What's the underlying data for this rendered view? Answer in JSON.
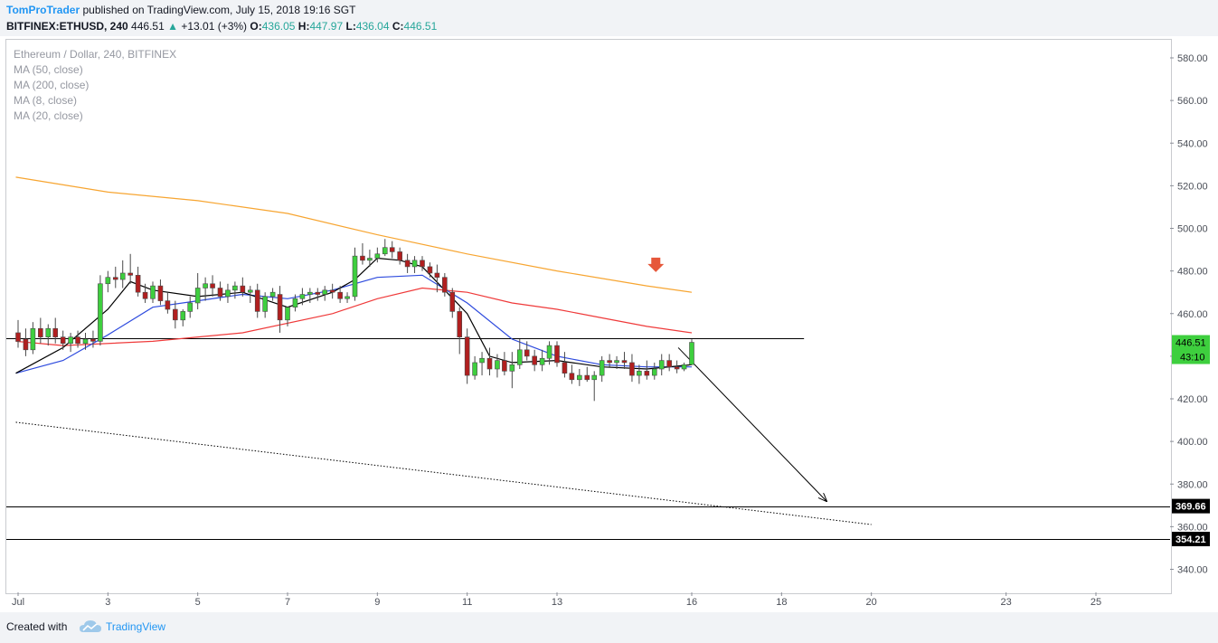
{
  "header": {
    "author": "TomProTrader",
    "published": "published on TradingView.com, July 15, 2018 19:16 SGT",
    "symbol": "BITFINEX:ETHUSD, 240",
    "last": "446.51",
    "arrow": "▲",
    "change": "+13.01 (+3%)",
    "o_label": "O:",
    "o_value": "436.05",
    "h_label": "H:",
    "h_value": "447.97",
    "l_label": "L:",
    "l_value": "436.04",
    "c_label": "C:",
    "c_value": "446.51"
  },
  "legend": {
    "title": "Ethereum / Dollar, 240, BITFINEX",
    "ma50": "MA (50, close)",
    "ma200": "MA (200, close)",
    "ma8": "MA (8, close)",
    "ma20": "MA (20, close)"
  },
  "footer": {
    "created": "Created with",
    "brand": "TradingView"
  },
  "colors": {
    "bull": "#3ecf3e",
    "bear": "#b11f1f",
    "ma200": "#f7a531",
    "ma50": "#ef3a3a",
    "ma20": "#2e4bde",
    "ma8": "#000000",
    "last_label": "#3ecf3e",
    "marker": "#e6573a"
  },
  "chart_data": {
    "type": "candlestick",
    "symbol": "BITFINEX:ETHUSD",
    "interval": "240",
    "ylim": [
      330,
      590
    ],
    "y_ticks": [
      "580.00",
      "560.00",
      "540.00",
      "520.00",
      "500.00",
      "480.00",
      "460.00",
      "440.00",
      "420.00",
      "400.00",
      "380.00",
      "360.00",
      "340.00"
    ],
    "x_ticks": [
      "Jul",
      "3",
      "5",
      "7",
      "9",
      "11",
      "13",
      "16",
      "18",
      "20",
      "23",
      "25"
    ],
    "x_tick_days": [
      1,
      3,
      5,
      7,
      9,
      11,
      13,
      16,
      18,
      20,
      23,
      25
    ],
    "x_range_days": [
      0.95,
      26.4
    ],
    "candles": [
      {
        "d": 1.0,
        "o": 451,
        "h": 457,
        "l": 444,
        "c": 447
      },
      {
        "d": 1.17,
        "o": 448,
        "h": 453,
        "l": 440,
        "c": 443
      },
      {
        "d": 1.33,
        "o": 443,
        "h": 456,
        "l": 441,
        "c": 453
      },
      {
        "d": 1.5,
        "o": 453,
        "h": 458,
        "l": 446,
        "c": 449
      },
      {
        "d": 1.67,
        "o": 449,
        "h": 455,
        "l": 445,
        "c": 453
      },
      {
        "d": 1.83,
        "o": 453,
        "h": 458,
        "l": 446,
        "c": 449
      },
      {
        "d": 2.0,
        "o": 449,
        "h": 452,
        "l": 443,
        "c": 446
      },
      {
        "d": 2.17,
        "o": 446,
        "h": 451,
        "l": 442,
        "c": 449
      },
      {
        "d": 2.33,
        "o": 449,
        "h": 452,
        "l": 444,
        "c": 446
      },
      {
        "d": 2.5,
        "o": 446,
        "h": 451,
        "l": 443,
        "c": 448
      },
      {
        "d": 2.67,
        "o": 448,
        "h": 452,
        "l": 444,
        "c": 447
      },
      {
        "d": 2.83,
        "o": 447,
        "h": 478,
        "l": 445,
        "c": 474
      },
      {
        "d": 3.0,
        "o": 474,
        "h": 480,
        "l": 470,
        "c": 477
      },
      {
        "d": 3.17,
        "o": 477,
        "h": 482,
        "l": 472,
        "c": 476
      },
      {
        "d": 3.33,
        "o": 476,
        "h": 485,
        "l": 472,
        "c": 479
      },
      {
        "d": 3.5,
        "o": 479,
        "h": 488,
        "l": 474,
        "c": 478
      },
      {
        "d": 3.67,
        "o": 478,
        "h": 482,
        "l": 468,
        "c": 470
      },
      {
        "d": 3.83,
        "o": 470,
        "h": 474,
        "l": 465,
        "c": 467
      },
      {
        "d": 4.0,
        "o": 467,
        "h": 475,
        "l": 465,
        "c": 473
      },
      {
        "d": 4.17,
        "o": 473,
        "h": 476,
        "l": 464,
        "c": 466
      },
      {
        "d": 4.33,
        "o": 466,
        "h": 470,
        "l": 460,
        "c": 462
      },
      {
        "d": 4.5,
        "o": 462,
        "h": 466,
        "l": 453,
        "c": 457
      },
      {
        "d": 4.67,
        "o": 457,
        "h": 462,
        "l": 454,
        "c": 461
      },
      {
        "d": 4.83,
        "o": 461,
        "h": 468,
        "l": 458,
        "c": 465
      },
      {
        "d": 5.0,
        "o": 465,
        "h": 479,
        "l": 462,
        "c": 472
      },
      {
        "d": 5.17,
        "o": 472,
        "h": 477,
        "l": 466,
        "c": 474
      },
      {
        "d": 5.33,
        "o": 474,
        "h": 478,
        "l": 468,
        "c": 472
      },
      {
        "d": 5.5,
        "o": 472,
        "h": 475,
        "l": 466,
        "c": 468
      },
      {
        "d": 5.67,
        "o": 468,
        "h": 474,
        "l": 465,
        "c": 471
      },
      {
        "d": 5.83,
        "o": 471,
        "h": 475,
        "l": 467,
        "c": 473
      },
      {
        "d": 6.0,
        "o": 473,
        "h": 477,
        "l": 468,
        "c": 470
      },
      {
        "d": 6.17,
        "o": 470,
        "h": 473,
        "l": 465,
        "c": 471
      },
      {
        "d": 6.33,
        "o": 471,
        "h": 474,
        "l": 458,
        "c": 461
      },
      {
        "d": 6.5,
        "o": 461,
        "h": 470,
        "l": 458,
        "c": 468
      },
      {
        "d": 6.67,
        "o": 468,
        "h": 472,
        "l": 466,
        "c": 470
      },
      {
        "d": 6.83,
        "o": 469,
        "h": 473,
        "l": 451,
        "c": 457
      },
      {
        "d": 7.0,
        "o": 457,
        "h": 463,
        "l": 454,
        "c": 463
      },
      {
        "d": 7.17,
        "o": 463,
        "h": 469,
        "l": 461,
        "c": 467
      },
      {
        "d": 7.33,
        "o": 467,
        "h": 472,
        "l": 464,
        "c": 469
      },
      {
        "d": 7.5,
        "o": 469,
        "h": 472,
        "l": 465,
        "c": 470
      },
      {
        "d": 7.67,
        "o": 470,
        "h": 472,
        "l": 466,
        "c": 469
      },
      {
        "d": 7.83,
        "o": 469,
        "h": 473,
        "l": 466,
        "c": 471
      },
      {
        "d": 8.0,
        "o": 471,
        "h": 474,
        "l": 467,
        "c": 470
      },
      {
        "d": 8.17,
        "o": 470,
        "h": 473,
        "l": 465,
        "c": 467
      },
      {
        "d": 8.33,
        "o": 467,
        "h": 470,
        "l": 465,
        "c": 468
      },
      {
        "d": 8.5,
        "o": 468,
        "h": 491,
        "l": 466,
        "c": 487
      },
      {
        "d": 8.67,
        "o": 487,
        "h": 493,
        "l": 483,
        "c": 485
      },
      {
        "d": 8.83,
        "o": 485,
        "h": 490,
        "l": 482,
        "c": 486
      },
      {
        "d": 9.0,
        "o": 486,
        "h": 491,
        "l": 484,
        "c": 488
      },
      {
        "d": 9.17,
        "o": 488,
        "h": 495,
        "l": 487,
        "c": 491
      },
      {
        "d": 9.33,
        "o": 491,
        "h": 494,
        "l": 486,
        "c": 489
      },
      {
        "d": 9.5,
        "o": 489,
        "h": 491,
        "l": 483,
        "c": 485
      },
      {
        "d": 9.67,
        "o": 485,
        "h": 488,
        "l": 479,
        "c": 482
      },
      {
        "d": 9.83,
        "o": 482,
        "h": 487,
        "l": 479,
        "c": 485
      },
      {
        "d": 10.0,
        "o": 485,
        "h": 487,
        "l": 480,
        "c": 482
      },
      {
        "d": 10.17,
        "o": 482,
        "h": 484,
        "l": 477,
        "c": 479
      },
      {
        "d": 10.33,
        "o": 479,
        "h": 483,
        "l": 470,
        "c": 477
      },
      {
        "d": 10.5,
        "o": 477,
        "h": 479,
        "l": 468,
        "c": 470
      },
      {
        "d": 10.67,
        "o": 470,
        "h": 472,
        "l": 458,
        "c": 461
      },
      {
        "d": 10.83,
        "o": 461,
        "h": 463,
        "l": 441,
        "c": 449
      },
      {
        "d": 11.0,
        "o": 449,
        "h": 453,
        "l": 427,
        "c": 431
      },
      {
        "d": 11.17,
        "o": 431,
        "h": 440,
        "l": 429,
        "c": 437
      },
      {
        "d": 11.33,
        "o": 437,
        "h": 442,
        "l": 431,
        "c": 439
      },
      {
        "d": 11.5,
        "o": 439,
        "h": 444,
        "l": 431,
        "c": 434
      },
      {
        "d": 11.67,
        "o": 434,
        "h": 441,
        "l": 430,
        "c": 438
      },
      {
        "d": 11.83,
        "o": 438,
        "h": 442,
        "l": 431,
        "c": 433
      },
      {
        "d": 12.0,
        "o": 433,
        "h": 442,
        "l": 425,
        "c": 436
      },
      {
        "d": 12.17,
        "o": 436,
        "h": 448,
        "l": 434,
        "c": 443
      },
      {
        "d": 12.33,
        "o": 443,
        "h": 447,
        "l": 438,
        "c": 440
      },
      {
        "d": 12.5,
        "o": 440,
        "h": 443,
        "l": 433,
        "c": 436
      },
      {
        "d": 12.67,
        "o": 436,
        "h": 443,
        "l": 433,
        "c": 439
      },
      {
        "d": 12.83,
        "o": 439,
        "h": 447,
        "l": 436,
        "c": 445
      },
      {
        "d": 13.0,
        "o": 445,
        "h": 447,
        "l": 435,
        "c": 437
      },
      {
        "d": 13.17,
        "o": 437,
        "h": 442,
        "l": 430,
        "c": 432
      },
      {
        "d": 13.33,
        "o": 432,
        "h": 436,
        "l": 427,
        "c": 429
      },
      {
        "d": 13.5,
        "o": 429,
        "h": 434,
        "l": 426,
        "c": 431
      },
      {
        "d": 13.67,
        "o": 431,
        "h": 435,
        "l": 428,
        "c": 429
      },
      {
        "d": 13.83,
        "o": 429,
        "h": 433,
        "l": 419,
        "c": 431
      },
      {
        "d": 14.0,
        "o": 431,
        "h": 440,
        "l": 428,
        "c": 438
      },
      {
        "d": 14.17,
        "o": 438,
        "h": 441,
        "l": 435,
        "c": 437
      },
      {
        "d": 14.33,
        "o": 437,
        "h": 440,
        "l": 434,
        "c": 438
      },
      {
        "d": 14.5,
        "o": 438,
        "h": 442,
        "l": 434,
        "c": 437
      },
      {
        "d": 14.67,
        "o": 437,
        "h": 441,
        "l": 428,
        "c": 431
      },
      {
        "d": 14.83,
        "o": 431,
        "h": 436,
        "l": 427,
        "c": 433
      },
      {
        "d": 15.0,
        "o": 433,
        "h": 438,
        "l": 429,
        "c": 431
      },
      {
        "d": 15.17,
        "o": 431,
        "h": 437,
        "l": 429,
        "c": 434
      },
      {
        "d": 15.33,
        "o": 434,
        "h": 441,
        "l": 431,
        "c": 438
      },
      {
        "d": 15.5,
        "o": 438,
        "h": 441,
        "l": 433,
        "c": 435
      },
      {
        "d": 15.67,
        "o": 435,
        "h": 438,
        "l": 432,
        "c": 434
      },
      {
        "d": 15.83,
        "o": 434,
        "h": 437,
        "l": 433,
        "c": 436
      },
      {
        "d": 16.0,
        "o": 436.05,
        "h": 447.97,
        "l": 436.04,
        "c": 446.51
      }
    ],
    "moving_averages": [
      {
        "name": "MA (200, close)",
        "color": "#f7a531",
        "points": [
          [
            0.95,
            524
          ],
          [
            3,
            517
          ],
          [
            5,
            513
          ],
          [
            7,
            507
          ],
          [
            9,
            497
          ],
          [
            11,
            488
          ],
          [
            13,
            480
          ],
          [
            15,
            473
          ],
          [
            16,
            470
          ]
        ]
      },
      {
        "name": "MA (50, close)",
        "color": "#ef3a3a",
        "points": [
          [
            0.95,
            447
          ],
          [
            2,
            445
          ],
          [
            4,
            447
          ],
          [
            6,
            451
          ],
          [
            8,
            460
          ],
          [
            9,
            467
          ],
          [
            10,
            472
          ],
          [
            11,
            470
          ],
          [
            12,
            465
          ],
          [
            13,
            462
          ],
          [
            14,
            458
          ],
          [
            15,
            454
          ],
          [
            16,
            451
          ]
        ]
      },
      {
        "name": "MA (20, close)",
        "color": "#2e4bde",
        "points": [
          [
            0.95,
            432
          ],
          [
            2,
            438
          ],
          [
            3,
            450
          ],
          [
            4,
            463
          ],
          [
            5,
            466
          ],
          [
            6,
            469
          ],
          [
            7,
            467
          ],
          [
            8,
            471
          ],
          [
            9,
            477
          ],
          [
            10,
            478
          ],
          [
            11,
            465
          ],
          [
            12,
            448
          ],
          [
            13,
            440
          ],
          [
            14,
            436
          ],
          [
            15,
            435
          ],
          [
            16,
            435
          ]
        ]
      },
      {
        "name": "MA (8, close)",
        "color": "#000000",
        "points": [
          [
            0.95,
            432
          ],
          [
            2,
            444
          ],
          [
            3,
            462
          ],
          [
            3.5,
            475
          ],
          [
            4,
            471
          ],
          [
            5,
            468
          ],
          [
            6,
            470
          ],
          [
            7,
            463
          ],
          [
            8,
            470
          ],
          [
            8.5,
            476
          ],
          [
            9,
            486
          ],
          [
            9.5,
            485
          ],
          [
            10,
            482
          ],
          [
            11,
            460
          ],
          [
            11.5,
            440
          ],
          [
            12,
            437
          ],
          [
            13,
            438
          ],
          [
            14,
            435
          ],
          [
            15,
            434
          ],
          [
            16,
            436
          ]
        ]
      }
    ],
    "horizontal_lines": [
      {
        "value": 448.5,
        "x_end_day": 18.5,
        "color": "#000000"
      },
      {
        "value": 369.66,
        "label": "369.66"
      },
      {
        "value": 354.21,
        "label": "354.21"
      }
    ],
    "trendlines": [
      {
        "from": [
          0.95,
          409
        ],
        "to": [
          20,
          361
        ],
        "style": "dotted"
      },
      {
        "from": [
          15.7,
          444
        ],
        "to": [
          19,
          372
        ],
        "style": "arrow"
      }
    ],
    "marker": {
      "type": "down-arrow",
      "day": 15.2,
      "value": 482
    },
    "last_price_label": "446.51",
    "countdown_label": "43:10"
  }
}
